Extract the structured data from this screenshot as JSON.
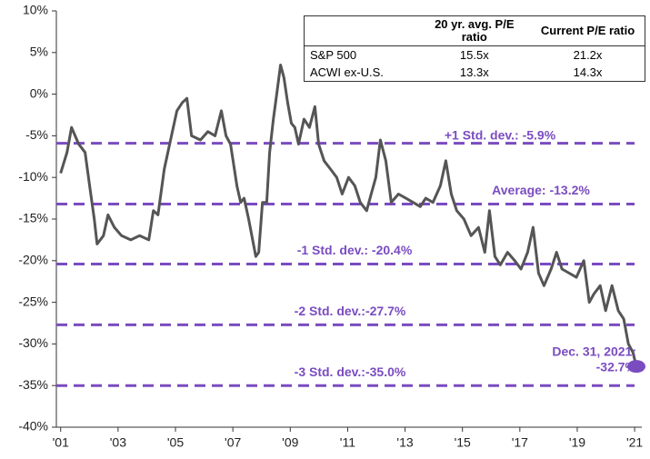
{
  "chart_data": {
    "type": "line",
    "x": [
      2001.0,
      2001.22,
      2001.38,
      2001.63,
      2001.85,
      2002.01,
      2002.17,
      2002.27,
      2002.49,
      2002.65,
      2002.87,
      2003.12,
      2003.44,
      2003.75,
      2004.07,
      2004.23,
      2004.39,
      2004.61,
      2004.86,
      2005.05,
      2005.24,
      2005.4,
      2005.56,
      2005.87,
      2006.13,
      2006.38,
      2006.6,
      2006.76,
      2006.92,
      2007.14,
      2007.27,
      2007.39,
      2007.55,
      2007.8,
      2007.9,
      2008.03,
      2008.18,
      2008.28,
      2008.41,
      2008.53,
      2008.66,
      2008.78,
      2008.91,
      2009.04,
      2009.16,
      2009.29,
      2009.48,
      2009.67,
      2009.86,
      2009.99,
      2010.18,
      2010.4,
      2010.62,
      2010.81,
      2011.03,
      2011.25,
      2011.44,
      2011.66,
      2011.82,
      2011.98,
      2012.14,
      2012.33,
      2012.52,
      2012.77,
      2013.03,
      2013.28,
      2013.53,
      2013.72,
      2013.97,
      2014.23,
      2014.42,
      2014.61,
      2014.8,
      2015.05,
      2015.3,
      2015.56,
      2015.78,
      2015.94,
      2016.13,
      2016.32,
      2016.57,
      2016.82,
      2017.04,
      2017.27,
      2017.46,
      2017.65,
      2017.84,
      2018.09,
      2018.28,
      2018.47,
      2018.72,
      2018.97,
      2019.23,
      2019.42,
      2019.58,
      2019.8,
      2019.99,
      2020.21,
      2020.43,
      2020.62,
      2020.78,
      2020.94,
      2021.06
    ],
    "values": [
      -9.5,
      -7,
      -4,
      -6,
      -7,
      -11,
      -15,
      -18,
      -17,
      -14.5,
      -16,
      -17,
      -17.5,
      -17,
      -17.5,
      -14,
      -14.5,
      -9,
      -5,
      -2,
      -1,
      -0.5,
      -5,
      -5.5,
      -4.5,
      -5,
      -2,
      -5,
      -6,
      -11,
      -13,
      -12.5,
      -15,
      -19.5,
      -19,
      -13,
      -13,
      -7,
      -3,
      0,
      3.5,
      2,
      -1,
      -3.5,
      -4,
      -6,
      -3,
      -4,
      -1.5,
      -6,
      -8,
      -9,
      -10,
      -12,
      -10,
      -11,
      -13,
      -14,
      -12,
      -10,
      -5.5,
      -8,
      -13,
      -12,
      -12.5,
      -13,
      -13.5,
      -12.5,
      -13,
      -11,
      -8,
      -12,
      -14,
      -15,
      -17,
      -16,
      -19,
      -14,
      -19.5,
      -20.5,
      -19,
      -20,
      -21,
      -19,
      -16,
      -21.5,
      -23,
      -21,
      -19,
      -21,
      -21.5,
      -22,
      -20,
      -25,
      -24,
      -23,
      -26,
      -23,
      -26,
      -27,
      -30,
      -31,
      -32.7
    ],
    "color": "#555555",
    "xlim": [
      2000.85,
      2021.25
    ],
    "xticks": [
      {
        "value": 2001,
        "label": "'01"
      },
      {
        "value": 2003,
        "label": "'03"
      },
      {
        "value": 2005,
        "label": "'05"
      },
      {
        "value": 2007,
        "label": "'07"
      },
      {
        "value": 2009,
        "label": "'09"
      },
      {
        "value": 2011,
        "label": "'11"
      },
      {
        "value": 2013,
        "label": "'13"
      },
      {
        "value": 2015,
        "label": "'15"
      },
      {
        "value": 2017,
        "label": "'17"
      },
      {
        "value": 2019,
        "label": "'19"
      },
      {
        "value": 2021,
        "label": "'21"
      }
    ],
    "ylim": [
      -40,
      10
    ],
    "yticks": [
      {
        "value": 10,
        "label": "10%"
      },
      {
        "value": 5,
        "label": "5%"
      },
      {
        "value": 0,
        "label": "0%"
      },
      {
        "value": -5,
        "label": "-5%"
      },
      {
        "value": -10,
        "label": "-10%"
      },
      {
        "value": -15,
        "label": "-15%"
      },
      {
        "value": -20,
        "label": "-20%"
      },
      {
        "value": -25,
        "label": "-25%"
      },
      {
        "value": -30,
        "label": "-30%"
      },
      {
        "value": -35,
        "label": "-35%"
      },
      {
        "value": -40,
        "label": "-40%"
      }
    ],
    "reference_color": "#7a4cc0",
    "reference_lines": [
      {
        "value": -5.9,
        "label": "+1 Std. dev.: -5.9%"
      },
      {
        "value": -13.2,
        "label": "Average: -13.2%"
      },
      {
        "value": -20.4,
        "label": "-1 Std. dev.: -20.4%"
      },
      {
        "value": -27.7,
        "label": "-2 Std. dev.:-27.7%"
      },
      {
        "value": -35.0,
        "label": "-3 Std. dev.:-35.0%"
      }
    ],
    "annotation": [
      "Dec. 31, 2021:",
      "-32.7%"
    ],
    "table": {
      "columns": [
        "20 yr. avg. P/E ratio",
        "Current P/E ratio"
      ],
      "rows": [
        [
          "S&P 500",
          "15.5x",
          "21.2x"
        ],
        [
          "ACWI ex-U.S.",
          "13.3x",
          "14.3x"
        ]
      ]
    }
  }
}
